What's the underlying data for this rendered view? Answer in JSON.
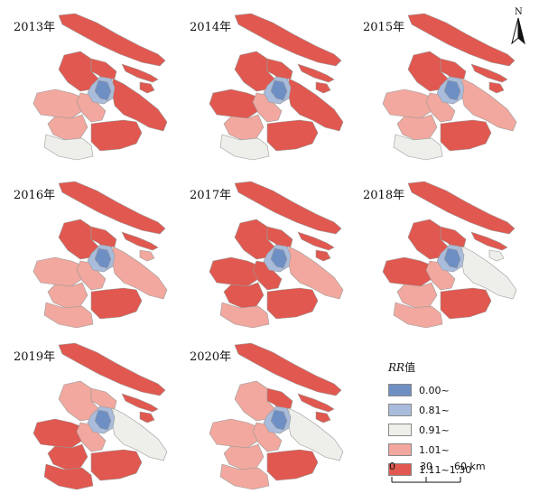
{
  "colors": {
    "c0": "#6e8fc4",
    "c1": "#a9bcdc",
    "c2": "#eeefea",
    "c3": "#f2a89e",
    "c4": "#e0584f",
    "stroke": "#9a9a9a"
  },
  "panels": [
    {
      "year": "2013年",
      "regions": {
        "chongming": "c4",
        "changxing": "c4",
        "hengsha": "c4",
        "baoshan": "c4",
        "jiading": "c4",
        "center": "c1",
        "center_dark": "c0",
        "pudong": "c4",
        "minhang": "c3",
        "qingpu": "c3",
        "songjiang": "c3",
        "jinshan": "c2",
        "fengxian": "c4"
      }
    },
    {
      "year": "2014年",
      "regions": {
        "chongming": "c4",
        "changxing": "c4",
        "hengsha": "c4",
        "baoshan": "c4",
        "jiading": "c4",
        "center": "c1",
        "center_dark": "c0",
        "pudong": "c4",
        "minhang": "c3",
        "qingpu": "c4",
        "songjiang": "c3",
        "jinshan": "c2",
        "fengxian": "c4"
      }
    },
    {
      "year": "2015年",
      "regions": {
        "chongming": "c4",
        "changxing": "c4",
        "hengsha": "c4",
        "baoshan": "c4",
        "jiading": "c4",
        "center": "c1",
        "center_dark": "c0",
        "pudong": "c3",
        "minhang": "c3",
        "qingpu": "c3",
        "songjiang": "c3",
        "jinshan": "c2",
        "fengxian": "c4"
      }
    },
    {
      "year": "2016年",
      "regions": {
        "chongming": "c4",
        "changxing": "c4",
        "hengsha": "c3",
        "baoshan": "c4",
        "jiading": "c4",
        "center": "c1",
        "center_dark": "c0",
        "pudong": "c3",
        "minhang": "c3",
        "qingpu": "c3",
        "songjiang": "c3",
        "jinshan": "c3",
        "fengxian": "c4"
      }
    },
    {
      "year": "2017年",
      "regions": {
        "chongming": "c4",
        "changxing": "c4",
        "hengsha": "c4",
        "baoshan": "c4",
        "jiading": "c4",
        "center": "c1",
        "center_dark": "c0",
        "pudong": "c3",
        "minhang": "c4",
        "qingpu": "c4",
        "songjiang": "c4",
        "jinshan": "c3",
        "fengxian": "c4"
      }
    },
    {
      "year": "2018年",
      "regions": {
        "chongming": "c4",
        "changxing": "c4",
        "hengsha": "c2",
        "baoshan": "c4",
        "jiading": "c4",
        "center": "c1",
        "center_dark": "c0",
        "pudong": "c2",
        "minhang": "c3",
        "qingpu": "c4",
        "songjiang": "c3",
        "jinshan": "c3",
        "fengxian": "c4"
      }
    },
    {
      "year": "2019年",
      "regions": {
        "chongming": "c4",
        "changxing": "c4",
        "hengsha": "c4",
        "baoshan": "c3",
        "jiading": "c3",
        "center": "c1",
        "center_dark": "c0",
        "pudong": "c2",
        "minhang": "c3",
        "qingpu": "c4",
        "songjiang": "c4",
        "jinshan": "c4",
        "fengxian": "c4"
      }
    },
    {
      "year": "2020年",
      "regions": {
        "chongming": "c4",
        "changxing": "c4",
        "hengsha": "c4",
        "baoshan": "c4",
        "jiading": "c3",
        "center": "c1",
        "center_dark": "c0",
        "pudong": "c2",
        "minhang": "c3",
        "qingpu": "c3",
        "songjiang": "c3",
        "jinshan": "c3",
        "fengxian": "c4"
      }
    }
  ],
  "north_label": "N",
  "legend": {
    "title_italic": "RR",
    "title_rest": "值",
    "items": [
      {
        "label": "0.00~",
        "color": "c0"
      },
      {
        "label": "0.81~",
        "color": "c1"
      },
      {
        "label": "0.91~",
        "color": "c2"
      },
      {
        "label": "1.01~",
        "color": "c3"
      },
      {
        "label": "1.11~1.30",
        "color": "c4"
      }
    ]
  },
  "scale": {
    "t0": "0",
    "t1": "30",
    "t2": "60 km"
  }
}
